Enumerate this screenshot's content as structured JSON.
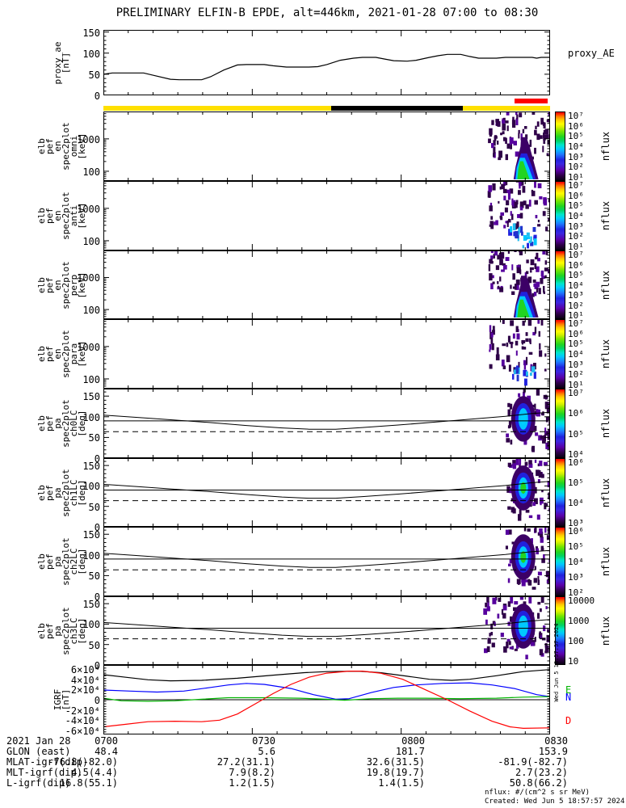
{
  "title": "PRELIMINARY ELFIN-B EPDE, alt=446km, 2021-01-28 07:00 to 08:30",
  "time_axis": {
    "tick_labels": [
      "0700",
      "0730",
      "0800",
      "0830"
    ],
    "start": "07:00",
    "end": "08:30"
  },
  "bars": {
    "epoch_bar": {
      "yellow": "#ffe000",
      "black": "#000000",
      "black_segment_frac": [
        0.51,
        0.805
      ]
    },
    "red_marker": {
      "color": "#ff0000",
      "x_frac": [
        0.92,
        0.994
      ]
    }
  },
  "palette": {
    "core_green": "#21d421",
    "cyan": "#00c8ff",
    "blue": "#2121de",
    "purple": "#3c0066",
    "speckle_dark": "#2e0048",
    "speckle_mid": "#56009e",
    "speckle_blue": "#2233cc",
    "speckle_cyan": "#22bbee"
  },
  "pa_overlays": {
    "lc_curve": [
      [
        0,
        104
      ],
      [
        0.08,
        98
      ],
      [
        0.16,
        92
      ],
      [
        0.24,
        86
      ],
      [
        0.32,
        79
      ],
      [
        0.4,
        73
      ],
      [
        0.46,
        70
      ],
      [
        0.52,
        70
      ],
      [
        0.58,
        74
      ],
      [
        0.66,
        80
      ],
      [
        0.74,
        87
      ],
      [
        0.82,
        94
      ],
      [
        0.9,
        101
      ],
      [
        0.96,
        108
      ],
      [
        1,
        111
      ]
    ],
    "line90": 90,
    "dashed_line": 64
  },
  "chart_data": [
    {
      "id": "proxy",
      "type": "line",
      "kind": "line",
      "left_label": [
        "proxy_ae",
        "[nT]"
      ],
      "right_label": "proxy_AE",
      "ylim": [
        0,
        155
      ],
      "yticks": [
        0,
        50,
        100,
        150
      ],
      "minor": 10,
      "ylabels": [
        {
          "v": 150,
          "t": "150"
        },
        {
          "v": 100,
          "t": "100"
        },
        {
          "v": 50,
          "t": "50"
        },
        {
          "v": 0,
          "t": "0"
        }
      ],
      "series": [
        {
          "name": "proxy_AE",
          "color": "#000000",
          "points": [
            [
              0,
              50
            ],
            [
              0.02,
              53
            ],
            [
              0.09,
              53
            ],
            [
              0.11,
              48
            ],
            [
              0.15,
              38
            ],
            [
              0.17,
              37
            ],
            [
              0.22,
              37
            ],
            [
              0.24,
              44
            ],
            [
              0.27,
              60
            ],
            [
              0.3,
              72
            ],
            [
              0.32,
              73
            ],
            [
              0.36,
              73
            ],
            [
              0.38,
              70
            ],
            [
              0.41,
              67
            ],
            [
              0.46,
              67
            ],
            [
              0.48,
              68
            ],
            [
              0.5,
              73
            ],
            [
              0.53,
              83
            ],
            [
              0.56,
              88
            ],
            [
              0.58,
              90
            ],
            [
              0.61,
              90
            ],
            [
              0.63,
              86
            ],
            [
              0.65,
              82
            ],
            [
              0.68,
              81
            ],
            [
              0.7,
              83
            ],
            [
              0.73,
              90
            ],
            [
              0.75,
              94
            ],
            [
              0.77,
              97
            ],
            [
              0.8,
              97
            ],
            [
              0.82,
              92
            ],
            [
              0.84,
              88
            ],
            [
              0.88,
              88
            ],
            [
              0.9,
              90
            ],
            [
              0.96,
              90
            ],
            [
              0.97,
              88
            ],
            [
              0.98,
              90
            ],
            [
              1,
              90
            ]
          ]
        }
      ]
    },
    {
      "id": "en_omni",
      "type": "heatmap",
      "kind": "en",
      "left_label": [
        "elb",
        "pef",
        "en",
        "spec2plot",
        "omni",
        "[keV]"
      ],
      "yscale": "log",
      "ylim": [
        50,
        7000
      ],
      "ylabels": [
        {
          "v": 1000,
          "t": "1000"
        },
        {
          "v": 100,
          "t": "100"
        }
      ],
      "colorbar": {
        "labels": [
          "10⁷",
          "10⁶",
          "10⁵",
          "10⁴",
          "10³",
          "10²",
          "10¹"
        ],
        "unit": "nflux"
      },
      "burst": {
        "style": "strong",
        "seed": 7
      }
    },
    {
      "id": "en_anti",
      "type": "heatmap",
      "kind": "en",
      "left_label": [
        "elb",
        "pef",
        "en",
        "spec2plot",
        "anti",
        "[keV]"
      ],
      "yscale": "log",
      "ylim": [
        50,
        7000
      ],
      "ylabels": [
        {
          "v": 1000,
          "t": "1000"
        },
        {
          "v": 100,
          "t": "100"
        }
      ],
      "colorbar": {
        "labels": [
          "10⁷",
          "10⁶",
          "10⁵",
          "10⁴",
          "10³",
          "10²",
          "10¹"
        ],
        "unit": "nflux"
      },
      "burst": {
        "style": "sparse_low",
        "seed": 21
      }
    },
    {
      "id": "en_perp",
      "type": "heatmap",
      "kind": "en",
      "left_label": [
        "elb",
        "pef",
        "en",
        "spec2plot",
        "perp",
        "[keV]"
      ],
      "yscale": "log",
      "ylim": [
        50,
        7000
      ],
      "ylabels": [
        {
          "v": 1000,
          "t": "1000"
        },
        {
          "v": 100,
          "t": "100"
        }
      ],
      "colorbar": {
        "labels": [
          "10⁷",
          "10⁶",
          "10⁵",
          "10⁴",
          "10³",
          "10²",
          "10¹"
        ],
        "unit": "nflux"
      },
      "burst": {
        "style": "strong",
        "seed": 33
      }
    },
    {
      "id": "en_para",
      "type": "heatmap",
      "kind": "en",
      "left_label": [
        "elb",
        "pef",
        "en",
        "spec2plot",
        "para",
        "[keV]"
      ],
      "yscale": "log",
      "ylim": [
        50,
        7000
      ],
      "ylabels": [
        {
          "v": 1000,
          "t": "1000"
        },
        {
          "v": 100,
          "t": "100"
        }
      ],
      "colorbar": {
        "labels": [
          "10⁷",
          "10⁶",
          "10⁵",
          "10⁴",
          "10³",
          "10²",
          "10¹"
        ],
        "unit": "nflux"
      },
      "burst": {
        "style": "speckle_low",
        "seed": 55
      }
    },
    {
      "id": "pa_ch0",
      "type": "heatmap",
      "kind": "pa",
      "left_label": [
        "elb",
        "pef",
        "pa",
        "spec2plot",
        "ch0LC",
        "[deg]"
      ],
      "ylim": [
        0,
        168
      ],
      "yticks": [
        0,
        50,
        100,
        150
      ],
      "minor": 10,
      "ylabels": [
        {
          "v": 150,
          "t": "150"
        },
        {
          "v": 100,
          "t": "100"
        },
        {
          "v": 50,
          "t": "50"
        },
        {
          "v": 0,
          "t": "0"
        }
      ],
      "colorbar": {
        "labels": [
          "10⁷",
          "10⁶",
          "10⁵",
          "10⁴"
        ],
        "unit": "nflux"
      },
      "burst": {
        "style": "pa_blob",
        "core": "#00d0ff",
        "seed": 61
      }
    },
    {
      "id": "pa_ch1",
      "type": "heatmap",
      "kind": "pa",
      "left_label": [
        "elb",
        "pef",
        "pa",
        "spec2plot",
        "ch1LC",
        "[deg]"
      ],
      "ylim": [
        0,
        168
      ],
      "yticks": [
        0,
        50,
        100,
        150
      ],
      "minor": 10,
      "ylabels": [
        {
          "v": 150,
          "t": "150"
        },
        {
          "v": 100,
          "t": "100"
        },
        {
          "v": 50,
          "t": "50"
        },
        {
          "v": 0,
          "t": "0"
        }
      ],
      "colorbar": {
        "labels": [
          "10⁶",
          "10⁵",
          "10⁴",
          "10³"
        ],
        "unit": "nflux"
      },
      "burst": {
        "style": "pa_blob",
        "core": "#21d421",
        "seed": 72
      }
    },
    {
      "id": "pa_ch2",
      "type": "heatmap",
      "kind": "pa",
      "left_label": [
        "elb",
        "pef",
        "pa",
        "spec2plot",
        "ch2LC",
        "[deg]"
      ],
      "ylim": [
        0,
        168
      ],
      "yticks": [
        0,
        50,
        100,
        150
      ],
      "minor": 10,
      "ylabels": [
        {
          "v": 150,
          "t": "150"
        },
        {
          "v": 100,
          "t": "100"
        },
        {
          "v": 50,
          "t": "50"
        },
        {
          "v": 0,
          "t": "0"
        }
      ],
      "colorbar": {
        "labels": [
          "10⁶",
          "10⁵",
          "10⁴",
          "10³",
          "10²"
        ],
        "unit": "nflux"
      },
      "burst": {
        "style": "pa_blob",
        "core": "#21d421",
        "seed": 83
      }
    },
    {
      "id": "pa_ch3",
      "type": "heatmap",
      "kind": "pa",
      "left_label": [
        "elb",
        "pef",
        "pa",
        "spec2plot",
        "ch3LC",
        "[deg]"
      ],
      "ylim": [
        0,
        168
      ],
      "yticks": [
        0,
        50,
        100,
        150
      ],
      "minor": 10,
      "ylabels": [
        {
          "v": 150,
          "t": "150"
        },
        {
          "v": 100,
          "t": "100"
        },
        {
          "v": 50,
          "t": "50"
        },
        {
          "v": 0,
          "t": "0"
        }
      ],
      "colorbar": {
        "labels": [
          "10000",
          "1000",
          "100",
          "10"
        ],
        "unit": "nflux"
      },
      "burst": {
        "style": "pa_blob",
        "core": "#00c8ff",
        "seed": 94,
        "wide": true
      }
    },
    {
      "id": "igrf",
      "type": "line",
      "kind": "line",
      "left_label": [
        "IGRF",
        "[nT]"
      ],
      "ylim": [
        -68000,
        68000
      ],
      "yticks": [
        -60000,
        -40000,
        -20000,
        0,
        20000,
        40000,
        60000
      ],
      "minor": 5000,
      "zero_line": true,
      "ylabels": [
        {
          "v": 60000,
          "t": "6×10⁴"
        },
        {
          "v": 40000,
          "t": "4×10⁴"
        },
        {
          "v": 20000,
          "t": "2×10⁴"
        },
        {
          "v": 0,
          "t": "0"
        },
        {
          "v": -20000,
          "t": "-2×10⁴"
        },
        {
          "v": -40000,
          "t": "-4×10⁴"
        },
        {
          "v": -60000,
          "t": "-6×10⁴"
        }
      ],
      "legend": [
        {
          "t": "E",
          "color": "#00b400"
        },
        {
          "t": "N",
          "color": "#0000ff"
        },
        {
          "t": "D",
          "color": "#ff0000"
        }
      ],
      "series": [
        {
          "name": "Bmag",
          "color": "#000000",
          "points": [
            [
              0,
              49000
            ],
            [
              0.05,
              44000
            ],
            [
              0.1,
              39000
            ],
            [
              0.15,
              37000
            ],
            [
              0.22,
              38000
            ],
            [
              0.3,
              42000
            ],
            [
              0.38,
              48000
            ],
            [
              0.45,
              53000
            ],
            [
              0.5,
              55000
            ],
            [
              0.57,
              56000
            ],
            [
              0.62,
              53000
            ],
            [
              0.68,
              46000
            ],
            [
              0.73,
              40000
            ],
            [
              0.78,
              38000
            ],
            [
              0.82,
              40000
            ],
            [
              0.88,
              47000
            ],
            [
              0.94,
              55000
            ],
            [
              1,
              59000
            ]
          ]
        },
        {
          "name": "N",
          "color": "#0000ff",
          "points": [
            [
              0,
              19000
            ],
            [
              0.06,
              17000
            ],
            [
              0.12,
              15000
            ],
            [
              0.18,
              17000
            ],
            [
              0.24,
              24000
            ],
            [
              0.28,
              29000
            ],
            [
              0.32,
              32000
            ],
            [
              0.36,
              30000
            ],
            [
              0.42,
              22000
            ],
            [
              0.47,
              10000
            ],
            [
              0.52,
              1000
            ],
            [
              0.55,
              2000
            ],
            [
              0.6,
              14000
            ],
            [
              0.65,
              24000
            ],
            [
              0.7,
              29000
            ],
            [
              0.76,
              32000
            ],
            [
              0.82,
              33000
            ],
            [
              0.87,
              29000
            ],
            [
              0.92,
              22000
            ],
            [
              0.97,
              10000
            ],
            [
              1,
              6000
            ]
          ]
        },
        {
          "name": "E",
          "color": "#00b400",
          "points": [
            [
              0,
              3000
            ],
            [
              0.04,
              -2000
            ],
            [
              0.1,
              -3000
            ],
            [
              0.16,
              -2000
            ],
            [
              0.22,
              1000
            ],
            [
              0.28,
              4000
            ],
            [
              0.36,
              4000
            ],
            [
              0.44,
              3000
            ],
            [
              0.5,
              1000
            ],
            [
              0.54,
              -1000
            ],
            [
              0.6,
              2000
            ],
            [
              0.66,
              3000
            ],
            [
              0.72,
              3000
            ],
            [
              0.8,
              2000
            ],
            [
              0.88,
              3000
            ],
            [
              0.94,
              5000
            ],
            [
              1,
              6000
            ]
          ]
        },
        {
          "name": "D",
          "color": "#ff0000",
          "points": [
            [
              0,
              -53000
            ],
            [
              0.05,
              -48000
            ],
            [
              0.1,
              -43000
            ],
            [
              0.16,
              -42000
            ],
            [
              0.22,
              -43000
            ],
            [
              0.26,
              -40000
            ],
            [
              0.3,
              -28000
            ],
            [
              0.34,
              -8000
            ],
            [
              0.38,
              12000
            ],
            [
              0.42,
              30000
            ],
            [
              0.46,
              44000
            ],
            [
              0.5,
              52000
            ],
            [
              0.55,
              56000
            ],
            [
              0.58,
              56000
            ],
            [
              0.62,
              52000
            ],
            [
              0.67,
              40000
            ],
            [
              0.72,
              20000
            ],
            [
              0.77,
              0
            ],
            [
              0.82,
              -22000
            ],
            [
              0.87,
              -42000
            ],
            [
              0.91,
              -53000
            ],
            [
              0.94,
              -56000
            ],
            [
              1,
              -55000
            ]
          ]
        }
      ]
    }
  ],
  "footer": {
    "rows": [
      {
        "label": "2021 Jan 28",
        "values": [
          "0700",
          "0730",
          "0800",
          "0830"
        ]
      },
      {
        "label": "GLON (east)",
        "values": [
          "48.4",
          "5.6",
          "181.7",
          "153.9"
        ]
      },
      {
        "label": "MLAT-igrf(dip)",
        "values": [
          "-76.8(-82.0)",
          "27.2(31.1)",
          "32.6(31.5)",
          "-81.9(-82.7)"
        ]
      },
      {
        "label": "MLT-igrf(dip)",
        "values": [
          "4.5(4.4)",
          "7.9(8.2)",
          "19.8(19.7)",
          "2.7(23.2)"
        ]
      },
      {
        "label": "L-igrf(dip)",
        "values": [
          "16.8(55.1)",
          "1.2(1.5)",
          "1.4(1.5)",
          "50.8(66.2)"
        ]
      }
    ],
    "units_note": "nflux: #/(cm^2 s sr MeV)",
    "created": "Created: Wed Jun  5 18:57:57 2024",
    "side_timestamp": "Wed Jun  5 18:57:57 2024"
  }
}
